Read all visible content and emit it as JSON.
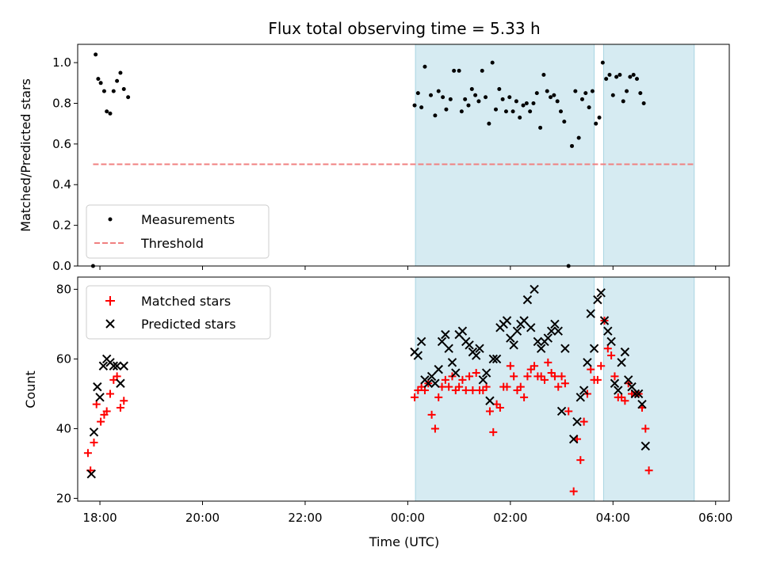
{
  "chart_data": [
    {
      "type": "scatter",
      "title": "Flux total observing time = 5.33 h",
      "xlabel": "",
      "ylabel": "Matched/Predicted stars",
      "ylim": [
        0,
        1.09
      ],
      "yticks": [
        "0.0",
        "0.2",
        "0.4",
        "0.6",
        "0.8",
        "1.0"
      ],
      "xlim": [
        "17:34",
        "06:16"
      ],
      "shaded_intervals": [
        [
          "00:09",
          "03:38"
        ],
        [
          "03:49",
          "05:35"
        ]
      ],
      "legend": {
        "placement": "lower-left",
        "entries": [
          "Measurements",
          "Threshold"
        ]
      },
      "threshold": {
        "name": "Threshold",
        "value": 0.5,
        "x_range": [
          "17:52",
          "05:35"
        ],
        "color": "#f08080"
      },
      "series": [
        {
          "name": "Measurements",
          "color": "#000000",
          "points": [
            [
              "17:52",
              0.0
            ],
            [
              "17:55",
              1.04
            ],
            [
              "17:58",
              0.92
            ],
            [
              "18:01",
              0.9
            ],
            [
              "18:05",
              0.86
            ],
            [
              "18:08",
              0.76
            ],
            [
              "18:12",
              0.75
            ],
            [
              "18:16",
              0.86
            ],
            [
              "18:20",
              0.91
            ],
            [
              "18:24",
              0.95
            ],
            [
              "18:28",
              0.87
            ],
            [
              "18:33",
              0.83
            ],
            [
              "00:08",
              0.79
            ],
            [
              "00:12",
              0.85
            ],
            [
              "00:16",
              0.78
            ],
            [
              "00:20",
              0.98
            ],
            [
              "00:27",
              0.84
            ],
            [
              "00:32",
              0.74
            ],
            [
              "00:36",
              0.86
            ],
            [
              "00:41",
              0.83
            ],
            [
              "00:45",
              0.77
            ],
            [
              "00:50",
              0.82
            ],
            [
              "00:54",
              0.96
            ],
            [
              "01:00",
              0.96
            ],
            [
              "01:03",
              0.76
            ],
            [
              "01:07",
              0.82
            ],
            [
              "01:11",
              0.79
            ],
            [
              "01:15",
              0.87
            ],
            [
              "01:19",
              0.84
            ],
            [
              "01:23",
              0.81
            ],
            [
              "01:27",
              0.96
            ],
            [
              "01:31",
              0.83
            ],
            [
              "01:35",
              0.7
            ],
            [
              "01:39",
              1.0
            ],
            [
              "01:43",
              0.77
            ],
            [
              "01:47",
              0.87
            ],
            [
              "01:51",
              0.82
            ],
            [
              "01:55",
              0.76
            ],
            [
              "01:59",
              0.83
            ],
            [
              "02:03",
              0.76
            ],
            [
              "02:07",
              0.81
            ],
            [
              "02:11",
              0.73
            ],
            [
              "02:15",
              0.79
            ],
            [
              "02:19",
              0.8
            ],
            [
              "02:23",
              0.76
            ],
            [
              "02:27",
              0.8
            ],
            [
              "02:31",
              0.85
            ],
            [
              "02:35",
              0.68
            ],
            [
              "02:39",
              0.94
            ],
            [
              "02:43",
              0.86
            ],
            [
              "02:47",
              0.83
            ],
            [
              "02:51",
              0.84
            ],
            [
              "02:55",
              0.81
            ],
            [
              "02:59",
              0.76
            ],
            [
              "03:03",
              0.71
            ],
            [
              "03:08",
              0.0
            ],
            [
              "03:12",
              0.59
            ],
            [
              "03:16",
              0.86
            ],
            [
              "03:20",
              0.63
            ],
            [
              "03:24",
              0.82
            ],
            [
              "03:28",
              0.85
            ],
            [
              "03:32",
              0.78
            ],
            [
              "03:36",
              0.86
            ],
            [
              "03:40",
              0.7
            ],
            [
              "03:44",
              0.73
            ],
            [
              "03:48",
              1.0
            ],
            [
              "03:52",
              0.92
            ],
            [
              "03:56",
              0.94
            ],
            [
              "04:00",
              0.84
            ],
            [
              "04:04",
              0.93
            ],
            [
              "04:08",
              0.94
            ],
            [
              "04:12",
              0.81
            ],
            [
              "04:16",
              0.86
            ],
            [
              "04:20",
              0.93
            ],
            [
              "04:24",
              0.94
            ],
            [
              "04:28",
              0.92
            ],
            [
              "04:32",
              0.85
            ],
            [
              "04:36",
              0.8
            ]
          ]
        }
      ]
    },
    {
      "type": "scatter",
      "title": "",
      "xlabel": "Time (UTC)",
      "ylabel": "Count",
      "ylim": [
        19.2,
        83.5
      ],
      "yticks": [
        "20",
        "40",
        "60",
        "80"
      ],
      "xlim": [
        "17:34",
        "06:16"
      ],
      "xticks": [
        "18:00",
        "20:00",
        "22:00",
        "00:00",
        "02:00",
        "04:00",
        "06:00"
      ],
      "shaded_intervals": [
        [
          "00:09",
          "03:38"
        ],
        [
          "03:49",
          "05:35"
        ]
      ],
      "legend": {
        "placement": "upper-left",
        "entries": [
          "Matched stars",
          "Predicted stars"
        ]
      },
      "series": [
        {
          "name": "Matched stars",
          "marker": "plus",
          "color": "#ff0000",
          "points": [
            [
              "17:46",
              33
            ],
            [
              "17:49",
              28
            ],
            [
              "17:53",
              36
            ],
            [
              "17:56",
              47
            ],
            [
              "18:01",
              42
            ],
            [
              "18:05",
              44
            ],
            [
              "18:08",
              45
            ],
            [
              "18:12",
              50
            ],
            [
              "18:16",
              54
            ],
            [
              "18:20",
              55
            ],
            [
              "18:24",
              46
            ],
            [
              "18:28",
              48
            ],
            [
              "00:08",
              49
            ],
            [
              "00:12",
              51
            ],
            [
              "00:16",
              52
            ],
            [
              "00:20",
              51
            ],
            [
              "00:24",
              53
            ],
            [
              "00:28",
              44
            ],
            [
              "00:32",
              40
            ],
            [
              "00:36",
              49
            ],
            [
              "00:40",
              52
            ],
            [
              "00:44",
              54
            ],
            [
              "00:48",
              52
            ],
            [
              "00:52",
              55
            ],
            [
              "00:56",
              51
            ],
            [
              "01:00",
              52
            ],
            [
              "01:04",
              54
            ],
            [
              "01:08",
              51
            ],
            [
              "01:12",
              55
            ],
            [
              "01:16",
              51
            ],
            [
              "01:20",
              56
            ],
            [
              "01:24",
              51
            ],
            [
              "01:28",
              51
            ],
            [
              "01:32",
              52
            ],
            [
              "01:36",
              45
            ],
            [
              "01:40",
              39
            ],
            [
              "01:44",
              47
            ],
            [
              "01:48",
              46
            ],
            [
              "01:52",
              52
            ],
            [
              "01:56",
              52
            ],
            [
              "02:00",
              58
            ],
            [
              "02:04",
              55
            ],
            [
              "02:08",
              51
            ],
            [
              "02:12",
              52
            ],
            [
              "02:16",
              49
            ],
            [
              "02:20",
              55
            ],
            [
              "02:24",
              57
            ],
            [
              "02:28",
              58
            ],
            [
              "02:32",
              55
            ],
            [
              "02:36",
              55
            ],
            [
              "02:40",
              54
            ],
            [
              "02:44",
              59
            ],
            [
              "02:48",
              56
            ],
            [
              "02:52",
              55
            ],
            [
              "02:56",
              52
            ],
            [
              "03:00",
              55
            ],
            [
              "03:04",
              53
            ],
            [
              "03:08",
              45
            ],
            [
              "03:14",
              22
            ],
            [
              "03:18",
              37
            ],
            [
              "03:22",
              31
            ],
            [
              "03:26",
              42
            ],
            [
              "03:30",
              50
            ],
            [
              "03:34",
              57
            ],
            [
              "03:38",
              54
            ],
            [
              "03:42",
              54
            ],
            [
              "03:46",
              58
            ],
            [
              "03:50",
              71
            ],
            [
              "03:54",
              63
            ],
            [
              "03:58",
              61
            ],
            [
              "04:02",
              55
            ],
            [
              "04:06",
              49
            ],
            [
              "04:10",
              49
            ],
            [
              "04:14",
              48
            ],
            [
              "04:18",
              53
            ],
            [
              "04:22",
              50
            ],
            [
              "04:26",
              50
            ],
            [
              "04:30",
              50
            ],
            [
              "04:34",
              46
            ],
            [
              "04:38",
              40
            ],
            [
              "04:42",
              28
            ]
          ]
        },
        {
          "name": "Predicted stars",
          "marker": "x",
          "color": "#000000",
          "points": [
            [
              "17:50",
              27
            ],
            [
              "17:53",
              39
            ],
            [
              "17:57",
              52
            ],
            [
              "18:00",
              49
            ],
            [
              "18:04",
              58
            ],
            [
              "18:08",
              60
            ],
            [
              "18:12",
              59
            ],
            [
              "18:16",
              58
            ],
            [
              "18:20",
              58
            ],
            [
              "18:24",
              53
            ],
            [
              "18:28",
              58
            ],
            [
              "00:08",
              62
            ],
            [
              "00:12",
              61
            ],
            [
              "00:16",
              65
            ],
            [
              "00:20",
              54
            ],
            [
              "00:24",
              53
            ],
            [
              "00:28",
              55
            ],
            [
              "00:32",
              53
            ],
            [
              "00:36",
              57
            ],
            [
              "00:40",
              65
            ],
            [
              "00:44",
              67
            ],
            [
              "00:48",
              63
            ],
            [
              "00:52",
              59
            ],
            [
              "00:56",
              56
            ],
            [
              "01:00",
              67
            ],
            [
              "01:04",
              68
            ],
            [
              "01:08",
              65
            ],
            [
              "01:12",
              64
            ],
            [
              "01:16",
              62
            ],
            [
              "01:20",
              61
            ],
            [
              "01:24",
              63
            ],
            [
              "01:28",
              54
            ],
            [
              "01:32",
              56
            ],
            [
              "01:36",
              48
            ],
            [
              "01:40",
              60
            ],
            [
              "01:44",
              60
            ],
            [
              "01:48",
              69
            ],
            [
              "01:52",
              70
            ],
            [
              "01:56",
              71
            ],
            [
              "02:00",
              66
            ],
            [
              "02:04",
              64
            ],
            [
              "02:08",
              68
            ],
            [
              "02:12",
              70
            ],
            [
              "02:16",
              71
            ],
            [
              "02:20",
              77
            ],
            [
              "02:24",
              69
            ],
            [
              "02:28",
              80
            ],
            [
              "02:32",
              65
            ],
            [
              "02:36",
              63
            ],
            [
              "02:40",
              65
            ],
            [
              "02:44",
              66
            ],
            [
              "02:48",
              68
            ],
            [
              "02:52",
              70
            ],
            [
              "02:56",
              68
            ],
            [
              "03:00",
              45
            ],
            [
              "03:04",
              63
            ],
            [
              "03:14",
              37
            ],
            [
              "03:18",
              42
            ],
            [
              "03:22",
              49
            ],
            [
              "03:26",
              51
            ],
            [
              "03:30",
              59
            ],
            [
              "03:34",
              73
            ],
            [
              "03:38",
              63
            ],
            [
              "03:42",
              77
            ],
            [
              "03:46",
              79
            ],
            [
              "03:50",
              71
            ],
            [
              "03:54",
              68
            ],
            [
              "03:58",
              65
            ],
            [
              "04:02",
              53
            ],
            [
              "04:06",
              51
            ],
            [
              "04:10",
              59
            ],
            [
              "04:14",
              62
            ],
            [
              "04:18",
              54
            ],
            [
              "04:22",
              52
            ],
            [
              "04:26",
              50
            ],
            [
              "04:30",
              50
            ],
            [
              "04:34",
              47
            ],
            [
              "04:38",
              35
            ]
          ]
        }
      ]
    }
  ]
}
